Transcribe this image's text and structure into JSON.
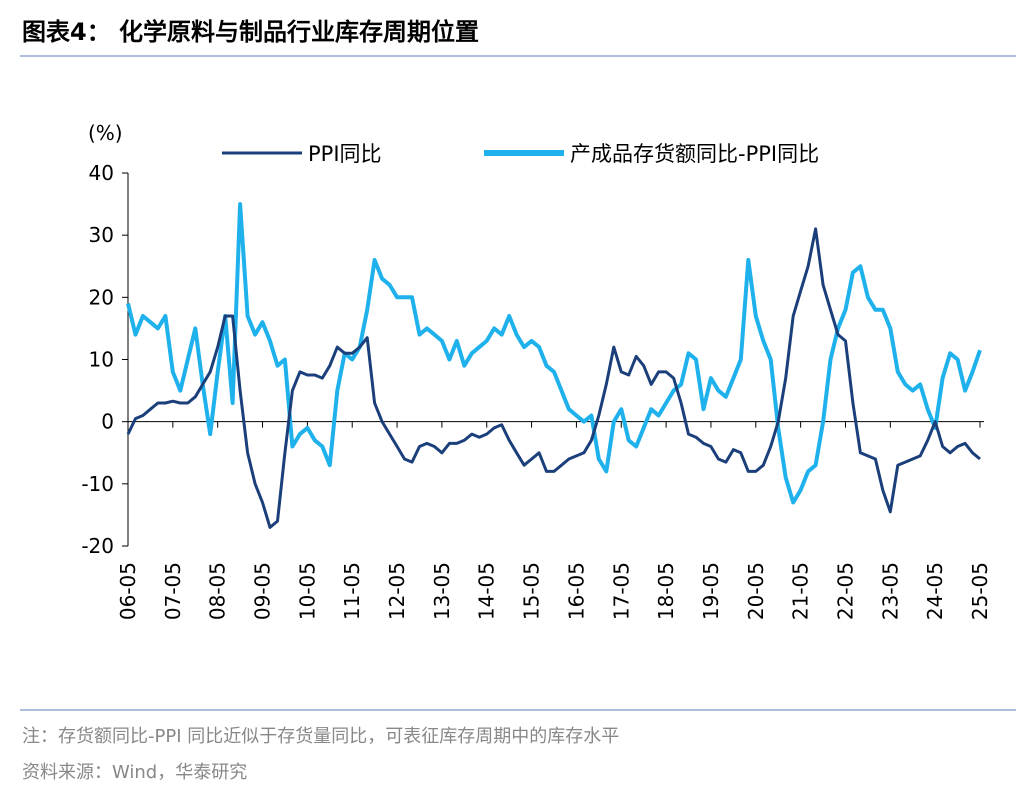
{
  "chart_data": {
    "type": "line",
    "title": "图表4： 化学原料与制品行业库存周期位置",
    "y_label": "(%)",
    "categories": [
      "06-05",
      null,
      null,
      null,
      null,
      null,
      "07-05",
      null,
      null,
      null,
      null,
      null,
      "08-05",
      null,
      null,
      null,
      null,
      null,
      "09-05",
      null,
      null,
      null,
      null,
      null,
      "10-05",
      null,
      null,
      null,
      null,
      null,
      "11-05",
      null,
      null,
      null,
      null,
      null,
      "12-05",
      null,
      null,
      null,
      null,
      null,
      "13-05",
      null,
      null,
      null,
      null,
      null,
      "14-05",
      null,
      null,
      null,
      null,
      null,
      "15-05",
      null,
      null,
      null,
      null,
      null,
      "16-05",
      null,
      null,
      null,
      null,
      null,
      "17-05",
      null,
      null,
      null,
      null,
      null,
      "18-05",
      null,
      null,
      null,
      null,
      null,
      "19-05",
      null,
      null,
      null,
      null,
      null,
      "20-05",
      null,
      null,
      null,
      null,
      null,
      "21-05",
      null,
      null,
      null,
      null,
      null,
      "22-05",
      null,
      null,
      null,
      null,
      null,
      "23-05",
      null,
      null,
      null,
      null,
      null,
      "24-05",
      null,
      null,
      null,
      null,
      null,
      "25-05"
    ],
    "series": [
      {
        "name": "PPI同比",
        "color": "#1b3f7a",
        "values": [
          -2,
          0.5,
          1,
          2,
          3,
          3,
          3.3,
          3,
          3,
          4,
          6,
          8,
          12,
          17,
          17,
          5,
          -5,
          -10,
          -13,
          -17,
          -16,
          -5,
          5,
          8,
          7.5,
          7.5,
          7,
          9,
          12,
          11,
          11,
          12,
          13.5,
          3,
          0,
          -2,
          -4,
          -6,
          -6.5,
          -4,
          -3.5,
          -4,
          -5,
          -3.5,
          -3.5,
          -3,
          -2,
          -2.5,
          -2,
          -1,
          -0.5,
          -3,
          -5,
          -7,
          -6,
          -5,
          -8,
          -8,
          -7,
          -6,
          -5.5,
          -5,
          -3,
          1,
          6,
          12,
          8,
          7.5,
          10.5,
          9,
          6,
          8,
          8,
          7,
          3,
          -2,
          -2.5,
          -3.5,
          -4,
          -6,
          -6.5,
          -4.5,
          -5,
          -8,
          -8,
          -7,
          -4,
          0,
          7,
          17,
          21,
          25,
          31,
          22,
          18,
          14,
          13,
          3,
          -5,
          -5.5,
          -6,
          -11,
          -14.5,
          -7,
          -6.5,
          -6,
          -5.5,
          -3,
          0,
          -4,
          -5,
          -4,
          -3.5,
          -5,
          -6
        ]
      },
      {
        "name": "产成品存货额同比-PPI同比",
        "color": "#1fb1ec",
        "values": [
          19,
          14,
          17,
          16,
          15,
          17,
          8,
          5,
          10,
          15,
          6,
          -2,
          8,
          17,
          3,
          35,
          17,
          14,
          16,
          13,
          9,
          10,
          -4,
          -2,
          -1,
          -3,
          -4,
          -7,
          5,
          11,
          10,
          12,
          18,
          26,
          23,
          22,
          20,
          20,
          20,
          14,
          15,
          14,
          13,
          10,
          13,
          9,
          11,
          12,
          13,
          15,
          14,
          17,
          14,
          12,
          13,
          12,
          9,
          8,
          5,
          2,
          1,
          0,
          1,
          -6,
          -8,
          0,
          2,
          -3,
          -4,
          -1,
          2,
          1,
          3,
          5,
          6,
          11,
          10,
          2,
          7,
          5,
          4,
          7,
          10,
          26,
          17,
          13,
          10,
          -1,
          -9,
          -13,
          -11,
          -8,
          -7,
          0,
          10,
          15,
          18,
          24,
          25,
          20,
          18,
          18,
          15,
          8,
          6,
          5,
          6,
          2,
          -1,
          7,
          11,
          10,
          5,
          8,
          11.5
        ]
      }
    ],
    "ylim": [
      -20,
      40
    ],
    "yticks": [
      -20,
      -10,
      0,
      10,
      20,
      30,
      40
    ],
    "grid": false,
    "legend": "top"
  },
  "footnotes": [
    "注：存货额同比-PPI 同比近似于存货量同比，可表征库存周期中的库存水平",
    "资料来源：Wind，华泰研究"
  ]
}
